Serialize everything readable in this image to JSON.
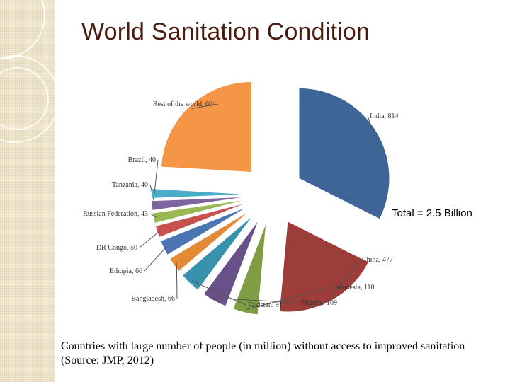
{
  "slide": {
    "title": "World Sanitation Condition",
    "total_note": "Total = 2.5 Billion",
    "caption": "Countries with large number of people (in million) without access to improved sanitation (Source: JMP, 2012)"
  },
  "chart_data": {
    "type": "pie",
    "title": "",
    "unit": "million",
    "slices": [
      {
        "label": "India, 814",
        "name": "India",
        "value": 814,
        "color": "#3d6696"
      },
      {
        "label": "China, 477",
        "name": "China",
        "value": 477,
        "color": "#9c3d3a"
      },
      {
        "label": "Indonesia, 110",
        "name": "Indonesia",
        "value": 110,
        "color": "#7f9d43"
      },
      {
        "label": "Nigeria, 109",
        "name": "Nigeria",
        "value": 109,
        "color": "#6a5089"
      },
      {
        "label": "Pakistan, 91",
        "name": "Pakistan",
        "value": 91,
        "color": "#3892ad"
      },
      {
        "label": "Bangladesh, 66",
        "name": "Bangladesh",
        "value": 66,
        "color": "#e28a35"
      },
      {
        "label": "Ethopia, 66",
        "name": "Ethopia",
        "value": 66,
        "color": "#4b76b4"
      },
      {
        "label": "DR Congo, 50",
        "name": "DR Congo",
        "value": 50,
        "color": "#c8504d"
      },
      {
        "label": "Russian Federation, 43",
        "name": "Russian Federation",
        "value": 43,
        "color": "#98b854"
      },
      {
        "label": "Tanzania, 40",
        "name": "Tanzania",
        "value": 40,
        "color": "#7e63a0"
      },
      {
        "label": "Brazil, 40",
        "name": "Brazil",
        "value": 40,
        "color": "#4aacc6"
      },
      {
        "label": "Rest of the world, 604",
        "name": "Rest of the world",
        "value": 604,
        "color": "#f59646"
      }
    ]
  }
}
